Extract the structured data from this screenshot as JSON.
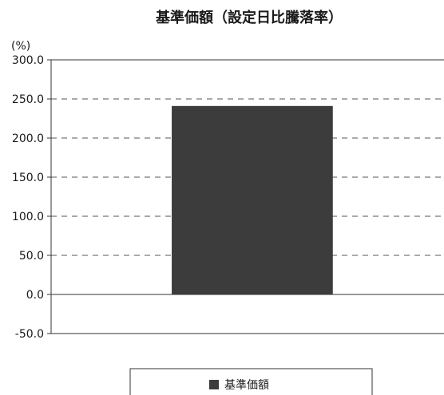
{
  "chart_data": {
    "type": "bar",
    "title": "基準価額（設定日比騰落率）",
    "ylabel": "(%)",
    "xlabel": "",
    "ylim": [
      -50,
      300
    ],
    "yticks": [
      300,
      250,
      200,
      150,
      100,
      50,
      0,
      -50
    ],
    "ytick_labels": [
      "300.0",
      "250.0",
      "200.0",
      "150.0",
      "100.0",
      "50.0",
      "0.0",
      "-50.0"
    ],
    "grid": "horizontal dashed",
    "categories": [
      ""
    ],
    "series": [
      {
        "name": "基準価額",
        "values": [
          241
        ],
        "color": "#3c3c3c"
      }
    ],
    "legend": {
      "position": "bottom-center",
      "entries": [
        "基準価額"
      ]
    }
  },
  "colors": {
    "bar": "#3c3c3c",
    "grid": "#555555",
    "axis": "#333333"
  }
}
